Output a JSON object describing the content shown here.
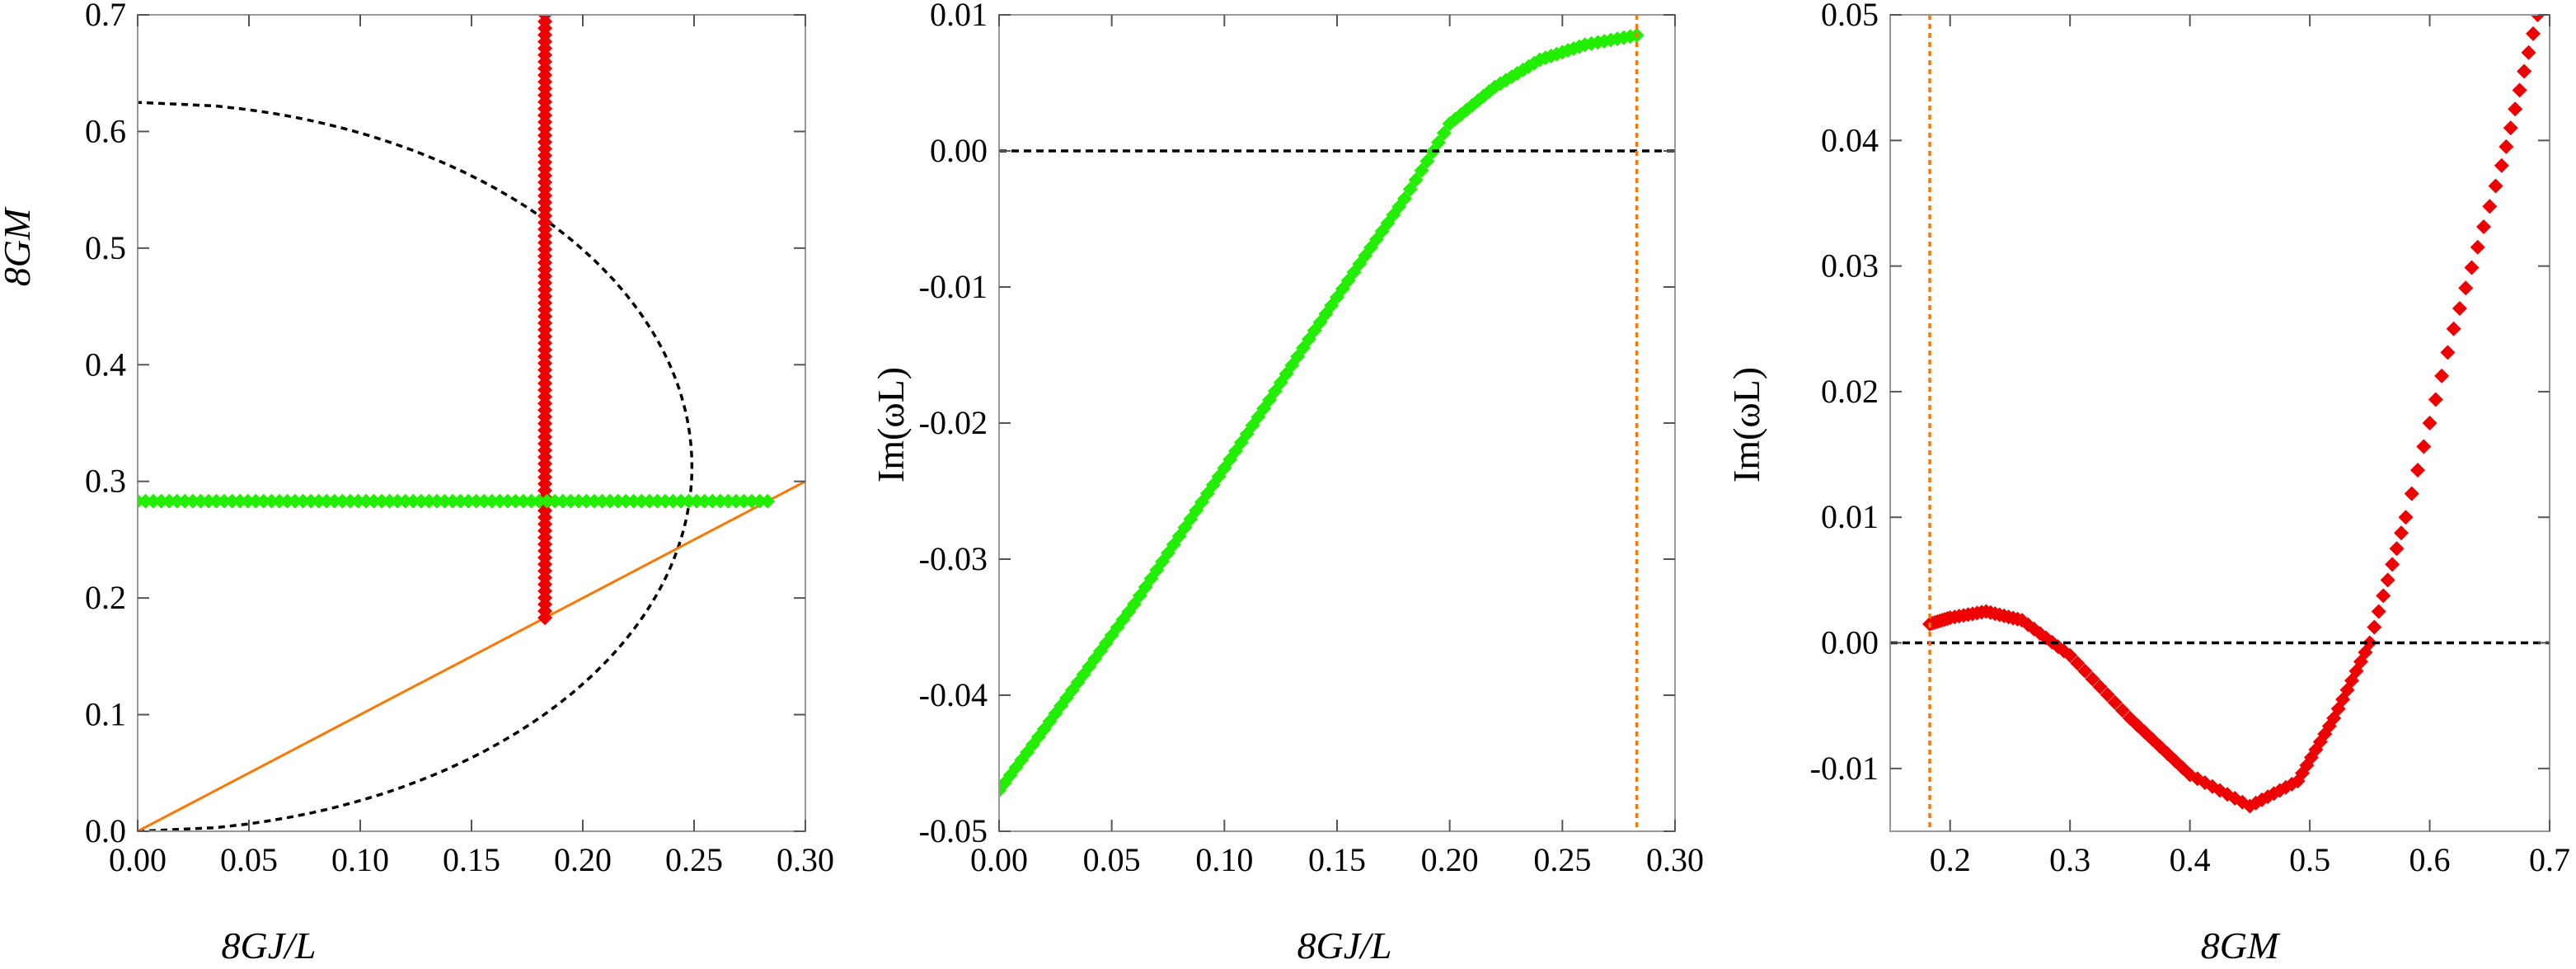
{
  "colors": {
    "red": "#ee0000",
    "green": "#22ee00",
    "orange": "#ff7700",
    "black": "#000000",
    "frame": "#999999"
  },
  "chart_data": [
    {
      "type": "scatter",
      "panel": "left",
      "xlabel": "8GJ/L",
      "ylabel": "8GM",
      "xlim": [
        0,
        0.3
      ],
      "ylim": [
        0,
        0.7
      ],
      "xticks": [
        0.0,
        0.05,
        0.1,
        0.15,
        0.2,
        0.25,
        0.3
      ],
      "xticklabels": [
        "0.00",
        "0.05",
        "0.10",
        "0.15",
        "0.20",
        "0.25",
        "0.30"
      ],
      "yticks": [
        0.0,
        0.1,
        0.2,
        0.3,
        0.4,
        0.5,
        0.6,
        0.7
      ],
      "yticklabels": [
        "0.0",
        "0.1",
        "0.2",
        "0.3",
        "0.4",
        "0.5",
        "0.6",
        "0.7"
      ],
      "grid": false,
      "series": [
        {
          "style": "dashed-curve",
          "color": "black",
          "x_expr": "0.63*sqrt(y)*sqrt(1-y/0.625)",
          "y_range": [
            0,
            0.625
          ]
        },
        {
          "style": "line",
          "color": "orange",
          "x": [
            0,
            0.3
          ],
          "y": [
            0,
            0.3
          ]
        },
        {
          "style": "markers",
          "color": "red",
          "x_const": 0.183,
          "y_range": [
            0.183,
            0.7
          ]
        },
        {
          "style": "markers",
          "color": "green",
          "y_const": 0.283,
          "x_range": [
            0,
            0.283
          ]
        }
      ]
    },
    {
      "type": "scatter",
      "panel": "middle",
      "xlabel": "8GJ/L",
      "ylabel": "Im(ωL)",
      "xlim": [
        0,
        0.3
      ],
      "ylim": [
        -0.05,
        0.01
      ],
      "xticks": [
        0.0,
        0.05,
        0.1,
        0.15,
        0.2,
        0.25,
        0.3
      ],
      "xticklabels": [
        "0.00",
        "0.05",
        "0.10",
        "0.15",
        "0.20",
        "0.25",
        "0.30"
      ],
      "yticks": [
        -0.05,
        -0.04,
        -0.03,
        -0.02,
        -0.01,
        0.0,
        0.01
      ],
      "yticklabels": [
        "-0.05",
        "-0.04",
        "-0.03",
        "-0.02",
        "-0.01",
        "0.00",
        "0.01"
      ],
      "grid": false,
      "series": [
        {
          "style": "markers",
          "color": "green",
          "x": [
            0,
            0.02,
            0.04,
            0.06,
            0.08,
            0.1,
            0.12,
            0.14,
            0.16,
            0.18,
            0.2,
            0.22,
            0.24,
            0.26,
            0.283
          ],
          "y": [
            -0.047,
            -0.0425,
            -0.0379,
            -0.0333,
            -0.0283,
            -0.0233,
            -0.0183,
            -0.0132,
            -0.0083,
            -0.0035,
            0.002,
            0.0047,
            0.0067,
            0.0078,
            0.0085
          ]
        },
        {
          "style": "dashed-line",
          "color": "black",
          "y_const": 0.0
        },
        {
          "style": "dotted-line",
          "color": "orange",
          "x_const": 0.283
        }
      ]
    },
    {
      "type": "scatter",
      "panel": "right",
      "xlabel": "8GM",
      "ylabel": "Im(ωL)",
      "xlim": [
        0.15,
        0.7
      ],
      "ylim": [
        -0.015,
        0.05
      ],
      "xticks": [
        0.2,
        0.3,
        0.4,
        0.5,
        0.6,
        0.7
      ],
      "xticklabels": [
        "0.2",
        "0.3",
        "0.4",
        "0.5",
        "0.6",
        "0.7"
      ],
      "yticks": [
        -0.01,
        0.0,
        0.01,
        0.02,
        0.03,
        0.04,
        0.05
      ],
      "yticklabels": [
        "-0.01",
        "0.00",
        "0.01",
        "0.02",
        "0.03",
        "0.04",
        "0.05"
      ],
      "grid": false,
      "series": [
        {
          "style": "markers",
          "color": "red",
          "x": [
            0.183,
            0.2,
            0.23,
            0.26,
            0.3,
            0.35,
            0.4,
            0.45,
            0.49,
            0.52,
            0.55,
            0.58,
            0.62,
            0.66,
            0.69
          ],
          "y": [
            0.0015,
            0.002,
            0.0025,
            0.0018,
            -0.001,
            -0.006,
            -0.0105,
            -0.013,
            -0.011,
            -0.006,
            0.0,
            0.01,
            0.025,
            0.038,
            0.05
          ]
        },
        {
          "style": "dashed-line",
          "color": "black",
          "y_const": 0.0
        },
        {
          "style": "dotted-line",
          "color": "orange",
          "x_const": 0.183
        }
      ]
    }
  ]
}
